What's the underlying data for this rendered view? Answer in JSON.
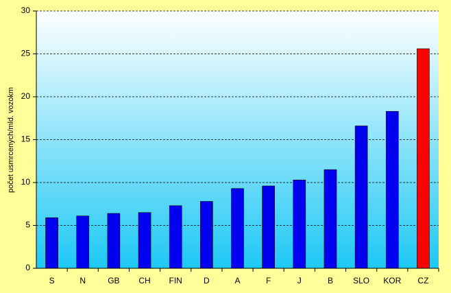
{
  "chart_data": {
    "type": "bar",
    "y_label": "počet usmrcených/mld. vozokm",
    "categories": [
      "S",
      "N",
      "GB",
      "CH",
      "FIN",
      "D",
      "A",
      "F",
      "J",
      "B",
      "SLO",
      "KOR",
      "CZ"
    ],
    "values": [
      5.9,
      6.1,
      6.4,
      6.5,
      7.3,
      7.8,
      9.3,
      9.6,
      10.3,
      11.5,
      16.6,
      18.3,
      25.6
    ],
    "colors": [
      "#0000ee",
      "#0000ee",
      "#0000ee",
      "#0000ee",
      "#0000ee",
      "#0000ee",
      "#0000ee",
      "#0000ee",
      "#0000ee",
      "#0000ee",
      "#0000ee",
      "#0000ee",
      "#ff0000"
    ],
    "ylim": [
      0,
      30
    ],
    "yticks": [
      0,
      5,
      10,
      15,
      20,
      25,
      30
    ],
    "grid": true
  }
}
